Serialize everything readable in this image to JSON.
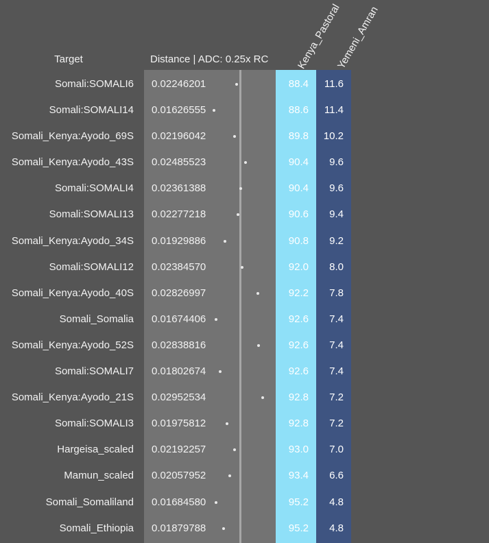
{
  "headers": {
    "target": "Target",
    "distance": "Distance | ADC: 0.25x RC",
    "col1": "Kenya_Pastoral",
    "col2": "Yemeni_Amran"
  },
  "colors": {
    "background": "#555555",
    "distance_panel": "#737373",
    "kenya_column": "#8fe0f8",
    "yemeni_column": "#3e5481"
  },
  "rows": [
    {
      "target": "Somali:SOMALI6",
      "distance": "0.02246201",
      "kenya": "88.4",
      "yemeni": "11.6"
    },
    {
      "target": "Somali:SOMALI14",
      "distance": "0.01626555",
      "kenya": "88.6",
      "yemeni": "11.4"
    },
    {
      "target": "Somali_Kenya:Ayodo_69S",
      "distance": "0.02196042",
      "kenya": "89.8",
      "yemeni": "10.2"
    },
    {
      "target": "Somali_Kenya:Ayodo_43S",
      "distance": "0.02485523",
      "kenya": "90.4",
      "yemeni": "9.6"
    },
    {
      "target": "Somali:SOMALI4",
      "distance": "0.02361388",
      "kenya": "90.4",
      "yemeni": "9.6"
    },
    {
      "target": "Somali:SOMALI13",
      "distance": "0.02277218",
      "kenya": "90.6",
      "yemeni": "9.4"
    },
    {
      "target": "Somali_Kenya:Ayodo_34S",
      "distance": "0.01929886",
      "kenya": "90.8",
      "yemeni": "9.2"
    },
    {
      "target": "Somali:SOMALI12",
      "distance": "0.02384570",
      "kenya": "92.0",
      "yemeni": "8.0"
    },
    {
      "target": "Somali_Kenya:Ayodo_40S",
      "distance": "0.02826997",
      "kenya": "92.2",
      "yemeni": "7.8"
    },
    {
      "target": "Somali_Somalia",
      "distance": "0.01674406",
      "kenya": "92.6",
      "yemeni": "7.4"
    },
    {
      "target": "Somali_Kenya:Ayodo_52S",
      "distance": "0.02838816",
      "kenya": "92.6",
      "yemeni": "7.4"
    },
    {
      "target": "Somali:SOMALI7",
      "distance": "0.01802674",
      "kenya": "92.6",
      "yemeni": "7.4"
    },
    {
      "target": "Somali_Kenya:Ayodo_21S",
      "distance": "0.02952534",
      "kenya": "92.8",
      "yemeni": "7.2"
    },
    {
      "target": "Somali:SOMALI3",
      "distance": "0.01975812",
      "kenya": "92.8",
      "yemeni": "7.2"
    },
    {
      "target": "Hargeisa_scaled",
      "distance": "0.02192257",
      "kenya": "93.0",
      "yemeni": "7.0"
    },
    {
      "target": "Mamun_scaled",
      "distance": "0.02057952",
      "kenya": "93.4",
      "yemeni": "6.6"
    },
    {
      "target": "Somali_Somaliland",
      "distance": "0.01684580",
      "kenya": "95.2",
      "yemeni": "4.8"
    },
    {
      "target": "Somali_Ethiopia",
      "distance": "0.01879788",
      "kenya": "95.2",
      "yemeni": "4.8"
    }
  ]
}
